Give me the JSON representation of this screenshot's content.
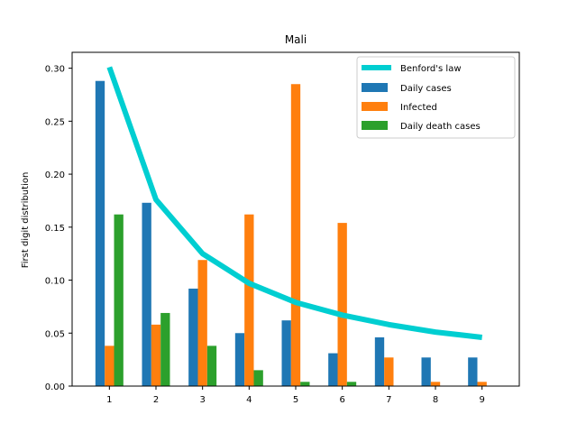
{
  "chart_data": {
    "type": "bar",
    "title": "Mali",
    "xlabel": "",
    "ylabel": "First digit distribution",
    "categories": [
      "1",
      "2",
      "3",
      "4",
      "5",
      "6",
      "7",
      "8",
      "9"
    ],
    "ylim": [
      0,
      0.315
    ],
    "yticks": [
      "0.00",
      "0.05",
      "0.10",
      "0.15",
      "0.20",
      "0.25",
      "0.30"
    ],
    "legend_position": "top-right",
    "line_series": {
      "name": "Benford's law",
      "color": "#00CED1",
      "values": [
        0.301,
        0.176,
        0.125,
        0.097,
        0.079,
        0.067,
        0.058,
        0.051,
        0.046
      ]
    },
    "series": [
      {
        "name": "Daily cases",
        "color": "#1f77b4",
        "values": [
          0.288,
          0.173,
          0.092,
          0.05,
          0.062,
          0.031,
          0.046,
          0.027,
          0.027
        ]
      },
      {
        "name": "Infected",
        "color": "#ff7f0e",
        "values": [
          0.038,
          0.058,
          0.119,
          0.162,
          0.285,
          0.154,
          0.027,
          0.004,
          0.004
        ]
      },
      {
        "name": "Daily death cases",
        "color": "#2ca02c",
        "values": [
          0.162,
          0.069,
          0.038,
          0.015,
          0.004,
          0.004,
          0.0,
          0.0,
          0.0
        ]
      }
    ]
  }
}
